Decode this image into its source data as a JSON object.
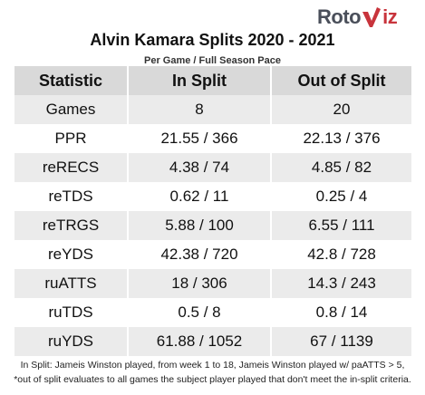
{
  "logo": {
    "left_text": "Roto",
    "right_text": "iz",
    "mark_icon": "v-check-icon",
    "colors": {
      "roto": "#4a4f5a",
      "viz": "#c8343c"
    }
  },
  "title": "Alvin Kamara Splits 2020 - 2021",
  "subtitle": "Per Game / Full Season Pace",
  "table": {
    "headers": [
      "Statistic",
      "In Split",
      "Out of Split"
    ],
    "rows": [
      [
        "Games",
        "8",
        "20"
      ],
      [
        "PPR",
        "21.55 / 366",
        "22.13 / 376"
      ],
      [
        "reRECS",
        "4.38 / 74",
        "4.85 / 82"
      ],
      [
        "reTDS",
        "0.62 / 11",
        "0.25 / 4"
      ],
      [
        "reTRGS",
        "5.88 / 100",
        "6.55 / 111"
      ],
      [
        "reYDS",
        "42.38 / 720",
        "42.8 / 728"
      ],
      [
        "ruATTS",
        "18 / 306",
        "14.3 / 243"
      ],
      [
        "ruTDS",
        "0.5 / 8",
        "0.8 / 14"
      ],
      [
        "ruYDS",
        "61.88 / 1052",
        "67 / 1139"
      ]
    ],
    "colors": {
      "header_bg": "#d9d9d9",
      "stripe_bg": "#ebebeb"
    }
  },
  "footnotes": [
    "In Split: Jameis Winston played, from week 1 to 18, Jameis Winston played w/ paATTS > 5,",
    "*out of split evaluates to all games the subject player played that don't meet the in-split criteria."
  ]
}
